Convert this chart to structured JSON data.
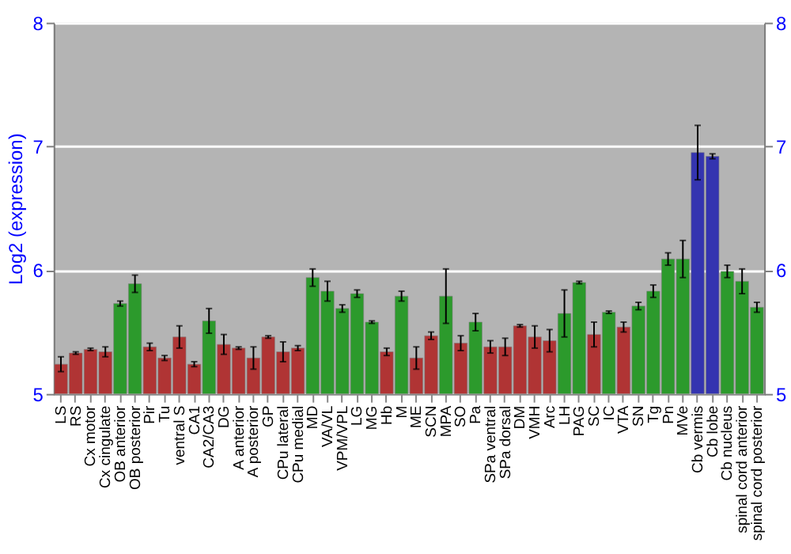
{
  "chart_data": {
    "type": "bar",
    "ylabel": "Log2 (expression)",
    "categories": [
      "LS",
      "RS",
      "Cx motor",
      "Cx cingulate",
      "OB anterior",
      "OB posterior",
      "Pir",
      "Tu",
      "ventral S",
      "CA1",
      "CA2/CA3",
      "DG",
      "A anterior",
      "A posterior",
      "GP",
      "CPu lateral",
      "CPu medial",
      "MD",
      "VA/VL",
      "VPM/VPL",
      "LG",
      "MG",
      "Hb",
      "M",
      "ME",
      "SCN",
      "MPA",
      "SO",
      "Pa",
      "SPa ventral",
      "SPa dorsal",
      "DM",
      "VMH",
      "Arc",
      "LH",
      "PAG",
      "SC",
      "IC",
      "VTA",
      "SN",
      "Tg",
      "Pn",
      "MVe",
      "Cb vermis",
      "Cb lobe",
      "Cb nucleus",
      "spinal cord anterior",
      "spinal cord posterior"
    ],
    "values": [
      5.24,
      5.33,
      5.36,
      5.34,
      5.73,
      5.89,
      5.38,
      5.29,
      5.46,
      5.24,
      5.59,
      5.4,
      5.37,
      5.29,
      5.46,
      5.34,
      5.37,
      5.94,
      5.83,
      5.69,
      5.81,
      5.58,
      5.34,
      5.79,
      5.29,
      5.47,
      5.79,
      5.41,
      5.58,
      5.38,
      5.38,
      5.55,
      5.46,
      5.43,
      5.65,
      5.9,
      5.48,
      5.66,
      5.54,
      5.71,
      5.83,
      6.09,
      6.09,
      6.95,
      6.92,
      5.99,
      5.91,
      5.7
    ],
    "errors": [
      0.06,
      0.01,
      0.01,
      0.04,
      0.02,
      0.07,
      0.03,
      0.02,
      0.09,
      0.02,
      0.1,
      0.08,
      0.01,
      0.09,
      0.01,
      0.08,
      0.02,
      0.07,
      0.08,
      0.03,
      0.03,
      0.01,
      0.03,
      0.04,
      0.09,
      0.03,
      0.22,
      0.06,
      0.07,
      0.05,
      0.07,
      0.01,
      0.09,
      0.09,
      0.19,
      0.01,
      0.1,
      0.01,
      0.04,
      0.03,
      0.05,
      0.05,
      0.15,
      0.22,
      0.02,
      0.05,
      0.1,
      0.04
    ],
    "colors": [
      "#b03434",
      "#b03434",
      "#b03434",
      "#b03434",
      "#2c9a2c",
      "#2c9a2c",
      "#b03434",
      "#b03434",
      "#b03434",
      "#b03434",
      "#2c9a2c",
      "#b03434",
      "#b03434",
      "#b03434",
      "#b03434",
      "#b03434",
      "#b03434",
      "#2c9a2c",
      "#2c9a2c",
      "#2c9a2c",
      "#2c9a2c",
      "#2c9a2c",
      "#b03434",
      "#2c9a2c",
      "#b03434",
      "#b03434",
      "#2c9a2c",
      "#b03434",
      "#2c9a2c",
      "#b03434",
      "#b03434",
      "#b03434",
      "#b03434",
      "#b03434",
      "#2c9a2c",
      "#2c9a2c",
      "#b03434",
      "#2c9a2c",
      "#b03434",
      "#2c9a2c",
      "#2c9a2c",
      "#2c9a2c",
      "#2c9a2c",
      "#3434b0",
      "#3434b0",
      "#2c9a2c",
      "#2c9a2c",
      "#2c9a2c"
    ],
    "ylim": [
      5,
      8
    ],
    "yticks": [
      5,
      6,
      7,
      8
    ],
    "y2lim": [
      5,
      8
    ],
    "y2ticks": [
      5,
      6,
      7,
      8
    ],
    "grid": "y"
  }
}
